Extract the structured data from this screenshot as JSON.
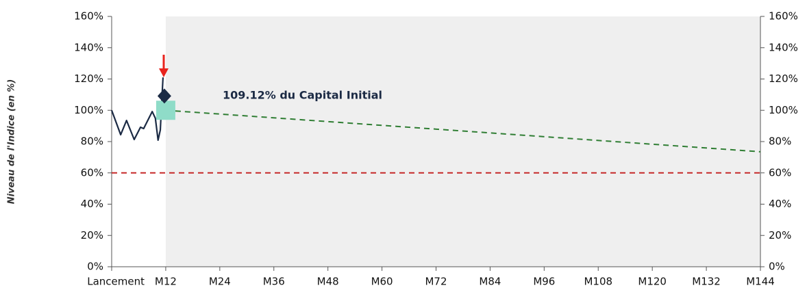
{
  "chart_data": {
    "type": "line",
    "y_axis_label": "Niveau de l'Indice (en %)",
    "annotation": {
      "text": "109.12% du Capital Initial",
      "x": 12,
      "value": 109.12
    },
    "xlim": [
      0,
      144
    ],
    "xticks": [
      {
        "value": 0,
        "label": "Lancement"
      },
      {
        "value": 12,
        "label": "M12"
      },
      {
        "value": 24,
        "label": "M24"
      },
      {
        "value": 36,
        "label": "M36"
      },
      {
        "value": 48,
        "label": "M48"
      },
      {
        "value": 60,
        "label": "M60"
      },
      {
        "value": 72,
        "label": "M72"
      },
      {
        "value": 84,
        "label": "M84"
      },
      {
        "value": 96,
        "label": "M96"
      },
      {
        "value": 108,
        "label": "M108"
      },
      {
        "value": 120,
        "label": "M120"
      },
      {
        "value": 132,
        "label": "M132"
      },
      {
        "value": 144,
        "label": "M144"
      }
    ],
    "ylim": [
      0,
      160
    ],
    "yticks": [
      {
        "value": 0,
        "label": "0%"
      },
      {
        "value": 20,
        "label": "20%"
      },
      {
        "value": 40,
        "label": "40%"
      },
      {
        "value": 60,
        "label": "60%"
      },
      {
        "value": 80,
        "label": "80%"
      },
      {
        "value": 100,
        "label": "100%"
      },
      {
        "value": 120,
        "label": "120%"
      },
      {
        "value": 140,
        "label": "140%"
      },
      {
        "value": 160,
        "label": "160%"
      }
    ],
    "y2lim": [
      0,
      160
    ],
    "y2ticks": [
      {
        "value": 0,
        "label": "0%"
      },
      {
        "value": 20,
        "label": "20%"
      },
      {
        "value": 40,
        "label": "40%"
      },
      {
        "value": 60,
        "label": "60%"
      },
      {
        "value": 80,
        "label": "80%"
      },
      {
        "value": 100,
        "label": "100%"
      },
      {
        "value": 120,
        "label": "120%"
      },
      {
        "value": 140,
        "label": "140%"
      },
      {
        "value": 160,
        "label": "160%"
      }
    ],
    "shade_x": [
      12,
      144
    ],
    "shade_color": "#efefef",
    "series": [
      {
        "color": "#1b2a44",
        "style": "solid",
        "x": [
          0,
          2,
          3.3,
          5,
          6.4,
          7.1,
          9,
          9.7,
          10.3,
          10.8,
          11.1,
          11.4
        ],
        "values": [
          100,
          84.4,
          93.5,
          81.3,
          89.2,
          88.3,
          99.2,
          94.9,
          80.9,
          87.4,
          105,
          121
        ]
      },
      {
        "color": "#2e7d32",
        "style": "dashed",
        "x": [
          12,
          144
        ],
        "values": [
          100,
          73.5
        ]
      },
      {
        "color": "#c62828",
        "style": "dashed",
        "x": [
          0,
          144
        ],
        "values": [
          60,
          60
        ]
      }
    ],
    "markers": [
      {
        "shape": "square",
        "color": "#8fdcc8",
        "x": 12,
        "value": 100
      },
      {
        "shape": "diamond",
        "color": "#1b2a44",
        "x": 11.7,
        "value": 109.12
      }
    ]
  }
}
